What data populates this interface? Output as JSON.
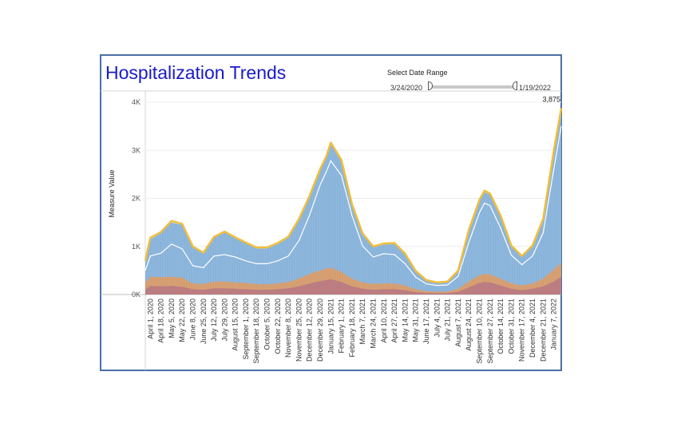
{
  "header": {
    "title": "Hospitalization Trends"
  },
  "date_filter": {
    "label": "Select Date Range",
    "start": "3/24/2020",
    "end": "1/19/2022"
  },
  "chart_data": {
    "type": "area",
    "title": "",
    "ylabel": "Measure Value",
    "xlabel": "",
    "ylim": [
      0,
      4200
    ],
    "y_ticks": [
      {
        "value": 0,
        "label": "0K"
      },
      {
        "value": 1000,
        "label": "1K"
      },
      {
        "value": 2000,
        "label": "2K"
      },
      {
        "value": 3000,
        "label": "3K"
      },
      {
        "value": 4000,
        "label": "4K"
      }
    ],
    "x_range": [
      "2020-03-24",
      "2022-01-19"
    ],
    "x_ticks": [
      {
        "date": "2020-04-01",
        "label": "April 1, 2020"
      },
      {
        "date": "2020-04-18",
        "label": "April 18, 2020"
      },
      {
        "date": "2020-05-05",
        "label": "May 5, 2020"
      },
      {
        "date": "2020-05-22",
        "label": "May 22, 2020"
      },
      {
        "date": "2020-06-08",
        "label": "June 8, 2020"
      },
      {
        "date": "2020-06-25",
        "label": "June 25, 2020"
      },
      {
        "date": "2020-07-12",
        "label": "July 12, 2020"
      },
      {
        "date": "2020-07-29",
        "label": "July 29, 2020"
      },
      {
        "date": "2020-08-15",
        "label": "August 15, 2020"
      },
      {
        "date": "2020-09-01",
        "label": "September 1, 2020"
      },
      {
        "date": "2020-09-18",
        "label": "September 18, 2020"
      },
      {
        "date": "2020-10-05",
        "label": "October 5, 2020"
      },
      {
        "date": "2020-10-22",
        "label": "October 22, 2020"
      },
      {
        "date": "2020-11-08",
        "label": "November 8, 2020"
      },
      {
        "date": "2020-11-25",
        "label": "November 25, 2020"
      },
      {
        "date": "2020-12-12",
        "label": "December 12, 2020"
      },
      {
        "date": "2020-12-29",
        "label": "December 29, 2020"
      },
      {
        "date": "2021-01-15",
        "label": "January 15, 2021"
      },
      {
        "date": "2021-02-01",
        "label": "February 1, 2021"
      },
      {
        "date": "2021-02-18",
        "label": "February 18, 2021"
      },
      {
        "date": "2021-03-07",
        "label": "March 7, 2021"
      },
      {
        "date": "2021-03-24",
        "label": "March 24, 2021"
      },
      {
        "date": "2021-04-10",
        "label": "April 10, 2021"
      },
      {
        "date": "2021-04-27",
        "label": "April 27, 2021"
      },
      {
        "date": "2021-05-14",
        "label": "May 14, 2021"
      },
      {
        "date": "2021-05-31",
        "label": "May 31, 2021"
      },
      {
        "date": "2021-06-17",
        "label": "June 17, 2021"
      },
      {
        "date": "2021-07-04",
        "label": "July 4, 2021"
      },
      {
        "date": "2021-07-21",
        "label": "July 21, 2021"
      },
      {
        "date": "2021-08-07",
        "label": "August 7, 2021"
      },
      {
        "date": "2021-08-24",
        "label": "August 24, 2021"
      },
      {
        "date": "2021-09-10",
        "label": "September 10, 2021"
      },
      {
        "date": "2021-09-27",
        "label": "September 27, 2021"
      },
      {
        "date": "2021-10-14",
        "label": "October 14, 2021"
      },
      {
        "date": "2021-10-31",
        "label": "October 31, 2021"
      },
      {
        "date": "2021-11-17",
        "label": "November 17, 2021"
      },
      {
        "date": "2021-12-04",
        "label": "December 4, 2021"
      },
      {
        "date": "2021-12-21",
        "label": "December 21, 2021"
      },
      {
        "date": "2022-01-07",
        "label": "January 7, 2022"
      }
    ],
    "series": [
      {
        "color": "#8fb8de",
        "x": [
          "2020-03-24",
          "2020-04-01",
          "2020-04-18",
          "2020-05-05",
          "2020-05-22",
          "2020-06-08",
          "2020-06-25",
          "2020-07-12",
          "2020-07-29",
          "2020-08-15",
          "2020-09-01",
          "2020-09-18",
          "2020-10-05",
          "2020-10-22",
          "2020-11-08",
          "2020-11-25",
          "2020-12-12",
          "2020-12-29",
          "2021-01-08",
          "2021-01-15",
          "2021-02-01",
          "2021-02-18",
          "2021-03-07",
          "2021-03-24",
          "2021-04-10",
          "2021-04-27",
          "2021-05-14",
          "2021-05-31",
          "2021-06-17",
          "2021-07-04",
          "2021-07-21",
          "2021-08-07",
          "2021-08-24",
          "2021-09-10",
          "2021-09-18",
          "2021-09-27",
          "2021-10-14",
          "2021-10-31",
          "2021-11-17",
          "2021-12-04",
          "2021-12-21",
          "2022-01-07",
          "2022-01-19"
        ],
        "values": [
          650,
          1150,
          1280,
          1500,
          1450,
          980,
          850,
          1180,
          1290,
          1170,
          1060,
          960,
          960,
          1050,
          1180,
          1550,
          2020,
          2580,
          2850,
          3130,
          2780,
          1850,
          1250,
          980,
          1040,
          1050,
          830,
          470,
          280,
          230,
          250,
          480,
          1320,
          1950,
          2130,
          2080,
          1620,
          1000,
          780,
          1000,
          1550,
          2950,
          3875
        ]
      },
      {
        "color": "#e0a06a",
        "x": [
          "2020-03-24",
          "2020-04-01",
          "2020-04-18",
          "2020-05-05",
          "2020-05-22",
          "2020-06-08",
          "2020-06-25",
          "2020-07-12",
          "2020-07-29",
          "2020-08-15",
          "2020-09-01",
          "2020-09-18",
          "2020-10-05",
          "2020-10-22",
          "2020-11-08",
          "2020-11-25",
          "2020-12-12",
          "2020-12-29",
          "2021-01-08",
          "2021-01-15",
          "2021-02-01",
          "2021-02-18",
          "2021-03-07",
          "2021-03-24",
          "2021-04-10",
          "2021-04-27",
          "2021-05-14",
          "2021-05-31",
          "2021-06-17",
          "2021-07-04",
          "2021-07-21",
          "2021-08-07",
          "2021-08-24",
          "2021-09-10",
          "2021-09-18",
          "2021-09-27",
          "2021-10-14",
          "2021-10-31",
          "2021-11-17",
          "2021-12-04",
          "2021-12-21",
          "2022-01-07",
          "2022-01-19"
        ],
        "values": [
          250,
          370,
          360,
          370,
          350,
          230,
          220,
          270,
          270,
          250,
          240,
          220,
          210,
          230,
          260,
          330,
          430,
          500,
          540,
          560,
          470,
          330,
          250,
          220,
          230,
          230,
          190,
          110,
          70,
          60,
          60,
          120,
          270,
          400,
          430,
          420,
          330,
          230,
          190,
          230,
          330,
          520,
          660
        ]
      },
      {
        "color": "#c47a7a",
        "x": [
          "2020-03-24",
          "2020-04-01",
          "2020-04-18",
          "2020-05-05",
          "2020-05-22",
          "2020-06-08",
          "2020-06-25",
          "2020-07-12",
          "2020-07-29",
          "2020-08-15",
          "2020-09-01",
          "2020-09-18",
          "2020-10-05",
          "2020-10-22",
          "2020-11-08",
          "2020-11-25",
          "2020-12-12",
          "2020-12-29",
          "2021-01-08",
          "2021-01-15",
          "2021-02-01",
          "2021-02-18",
          "2021-03-07",
          "2021-03-24",
          "2021-04-10",
          "2021-04-27",
          "2021-05-14",
          "2021-05-31",
          "2021-06-17",
          "2021-07-04",
          "2021-07-21",
          "2021-08-07",
          "2021-08-24",
          "2021-09-10",
          "2021-09-18",
          "2021-09-27",
          "2021-10-14",
          "2021-10-31",
          "2021-11-17",
          "2021-12-04",
          "2021-12-21",
          "2022-01-07",
          "2022-01-19"
        ],
        "values": [
          100,
          180,
          170,
          180,
          160,
          110,
          100,
          130,
          130,
          120,
          110,
          100,
          100,
          110,
          130,
          170,
          230,
          280,
          300,
          320,
          260,
          170,
          120,
          100,
          110,
          110,
          90,
          50,
          35,
          30,
          30,
          60,
          150,
          240,
          260,
          250,
          190,
          120,
          90,
          120,
          170,
          270,
          370
        ]
      }
    ],
    "overlay_line": {
      "color": "#f0be3c",
      "x": [
        "2020-03-24",
        "2020-04-01",
        "2020-04-18",
        "2020-05-05",
        "2020-05-22",
        "2020-06-08",
        "2020-06-25",
        "2020-07-12",
        "2020-07-29",
        "2020-08-15",
        "2020-09-01",
        "2020-09-18",
        "2020-10-05",
        "2020-10-22",
        "2020-11-08",
        "2020-11-25",
        "2020-12-12",
        "2020-12-29",
        "2021-01-08",
        "2021-01-15",
        "2021-02-01",
        "2021-02-18",
        "2021-03-07",
        "2021-03-24",
        "2021-04-10",
        "2021-04-27",
        "2021-05-14",
        "2021-05-31",
        "2021-06-17",
        "2021-07-04",
        "2021-07-21",
        "2021-08-07",
        "2021-08-24",
        "2021-09-10",
        "2021-09-18",
        "2021-09-27",
        "2021-10-14",
        "2021-10-31",
        "2021-11-17",
        "2021-12-04",
        "2021-12-21",
        "2022-01-07",
        "2022-01-19"
      ],
      "values": [
        700,
        1180,
        1300,
        1530,
        1470,
        1000,
        870,
        1200,
        1310,
        1190,
        1080,
        980,
        980,
        1070,
        1200,
        1570,
        2050,
        2610,
        2880,
        3160,
        2800,
        1880,
        1270,
        1000,
        1060,
        1070,
        850,
        490,
        300,
        250,
        270,
        500,
        1340,
        1970,
        2160,
        2100,
        1640,
        1020,
        800,
        1020,
        1570,
        2980,
        3875
      ]
    },
    "white_line": {
      "color": "#ffffff",
      "x": [
        "2020-03-24",
        "2020-04-01",
        "2020-04-18",
        "2020-05-05",
        "2020-05-22",
        "2020-06-08",
        "2020-06-25",
        "2020-07-12",
        "2020-07-29",
        "2020-08-15",
        "2020-09-01",
        "2020-09-18",
        "2020-10-05",
        "2020-10-22",
        "2020-11-08",
        "2020-11-25",
        "2020-12-12",
        "2020-12-29",
        "2021-01-08",
        "2021-01-15",
        "2021-02-01",
        "2021-02-18",
        "2021-03-07",
        "2021-03-24",
        "2021-04-10",
        "2021-04-27",
        "2021-05-14",
        "2021-05-31",
        "2021-06-17",
        "2021-07-04",
        "2021-07-21",
        "2021-08-07",
        "2021-08-24",
        "2021-09-10",
        "2021-09-18",
        "2021-09-27",
        "2021-10-14",
        "2021-10-31",
        "2021-11-17",
        "2021-12-04",
        "2021-12-21",
        "2022-01-07",
        "2022-01-19"
      ],
      "values": [
        500,
        800,
        860,
        1050,
        950,
        600,
        560,
        800,
        830,
        780,
        700,
        640,
        640,
        700,
        800,
        1120,
        1650,
        2280,
        2560,
        2780,
        2480,
        1640,
        1010,
        780,
        850,
        830,
        640,
        360,
        220,
        190,
        200,
        380,
        1080,
        1700,
        1900,
        1850,
        1380,
        820,
        620,
        800,
        1280,
        2600,
        3500
      ]
    },
    "data_labels": [
      {
        "date": "2022-01-19",
        "value": 3875,
        "text": "3,875"
      }
    ],
    "grid": true,
    "legend": "none"
  }
}
